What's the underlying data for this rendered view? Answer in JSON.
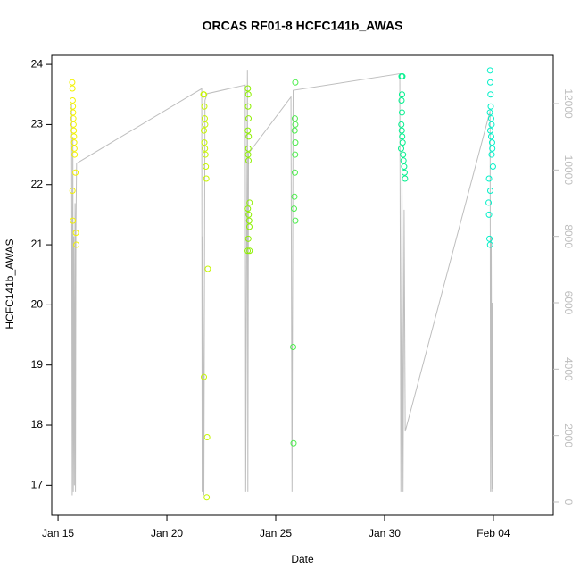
{
  "chart_data": {
    "type": "scatter",
    "title": "ORCAS RF01-8 HCFC141b_AWAS",
    "xlabel": "Date",
    "ylabel": "HCFC141b_AWAS",
    "xlim": [
      14.71,
      37.75
    ],
    "xticks": [
      {
        "value": 15,
        "label": "Jan 15"
      },
      {
        "value": 20,
        "label": "Jan 20"
      },
      {
        "value": 25,
        "label": "Jan 25"
      },
      {
        "value": 30,
        "label": "Jan 30"
      },
      {
        "value": 35,
        "label": "Feb 04"
      }
    ],
    "ylim": [
      16.5,
      24.15
    ],
    "yticks": [
      17,
      18,
      19,
      20,
      21,
      22,
      23,
      24
    ],
    "y2lim": [
      -404,
      13453
    ],
    "y2ticks": [
      0,
      2000,
      4000,
      6000,
      8000,
      10000,
      12000
    ],
    "y2color": "#bebebe",
    "series": [
      {
        "color": "#f2f200",
        "x": [
          15.65,
          15.66,
          15.67,
          15.68,
          15.69,
          15.7,
          15.71,
          15.72,
          15.73,
          15.74,
          15.75,
          15.76,
          15.8,
          15.66,
          15.68,
          15.82,
          15.84
        ],
        "values": [
          23.7,
          23.6,
          23.4,
          23.3,
          23.2,
          23.1,
          23.0,
          22.9,
          22.8,
          22.7,
          22.6,
          22.5,
          22.2,
          21.9,
          21.4,
          21.2,
          21.0
        ]
      },
      {
        "color": "#c6f500",
        "x": [
          21.68,
          21.7,
          21.72,
          21.74,
          21.76,
          21.7,
          21.72,
          21.75,
          21.77,
          21.79,
          21.81,
          21.88,
          21.7,
          21.85,
          21.83
        ],
        "values": [
          23.5,
          23.5,
          23.3,
          23.1,
          23.0,
          22.9,
          22.7,
          22.6,
          22.5,
          22.3,
          22.1,
          20.6,
          18.8,
          17.8,
          16.8
        ]
      },
      {
        "color": "#8ef000",
        "x": [
          23.72,
          23.74,
          23.73,
          23.75,
          23.72,
          23.76,
          23.74,
          23.73,
          23.75,
          23.8,
          23.72,
          23.76,
          23.78,
          23.79,
          23.74,
          23.71,
          23.8
        ],
        "values": [
          23.6,
          23.5,
          23.3,
          23.1,
          22.9,
          22.8,
          22.6,
          22.5,
          22.4,
          21.7,
          21.6,
          21.5,
          21.4,
          21.3,
          21.1,
          20.9,
          20.9
        ]
      },
      {
        "color": "#4cee4c",
        "x": [
          25.9,
          25.88,
          25.9,
          25.87,
          25.9,
          25.89,
          25.88,
          25.86,
          25.84,
          25.9,
          25.8,
          25.82
        ],
        "values": [
          23.7,
          23.1,
          23.0,
          22.9,
          22.7,
          22.5,
          22.2,
          21.8,
          21.6,
          21.4,
          19.3,
          17.7
        ]
      },
      {
        "color": "#00f08c",
        "x": [
          30.78,
          30.82,
          30.8,
          30.78,
          30.8,
          30.77,
          30.79,
          30.81,
          30.83,
          30.76,
          30.85,
          30.87,
          30.9,
          30.92,
          30.94
        ],
        "values": [
          23.8,
          23.8,
          23.5,
          23.4,
          23.2,
          23.0,
          22.9,
          22.8,
          22.7,
          22.6,
          22.5,
          22.4,
          22.3,
          22.2,
          22.1
        ]
      },
      {
        "color": "#00f0c8",
        "x": [
          34.85,
          34.86,
          34.87,
          34.88,
          34.84,
          34.9,
          34.92,
          34.86,
          34.9,
          34.94,
          34.95,
          34.92,
          34.98,
          34.8,
          34.86,
          34.78,
          34.8,
          34.82,
          34.85
        ],
        "values": [
          23.9,
          23.7,
          23.5,
          23.3,
          23.2,
          23.1,
          23.0,
          22.9,
          22.8,
          22.7,
          22.6,
          22.5,
          22.3,
          22.1,
          21.9,
          21.7,
          21.5,
          21.1,
          21.0
        ]
      },
      {
        "type": "line",
        "axis": "y2",
        "color": "#bebebe",
        "x": [
          15.62,
          15.65,
          15.68,
          15.7,
          15.72,
          15.75,
          15.78,
          15.8,
          15.82,
          15.85,
          21.6,
          21.62,
          21.65,
          21.7,
          21.75,
          21.85,
          23.6,
          23.62,
          23.7,
          23.72,
          23.75,
          25.7,
          25.75,
          25.8,
          30.7,
          30.75,
          30.8,
          30.85,
          30.9,
          30.95,
          34.85,
          34.87,
          34.9,
          34.93,
          34.95,
          34.97
        ],
        "values": [
          12000,
          200,
          11000,
          300,
          8000,
          500,
          9000,
          300,
          8200,
          10200,
          12450,
          300,
          8000,
          200,
          12100,
          12300,
          12560,
          300,
          13020,
          300,
          10500,
          12200,
          300,
          12400,
          12900,
          300,
          10000,
          300,
          8800,
          2125,
          11780,
          300,
          8000,
          300,
          6000,
          400
        ]
      }
    ]
  }
}
